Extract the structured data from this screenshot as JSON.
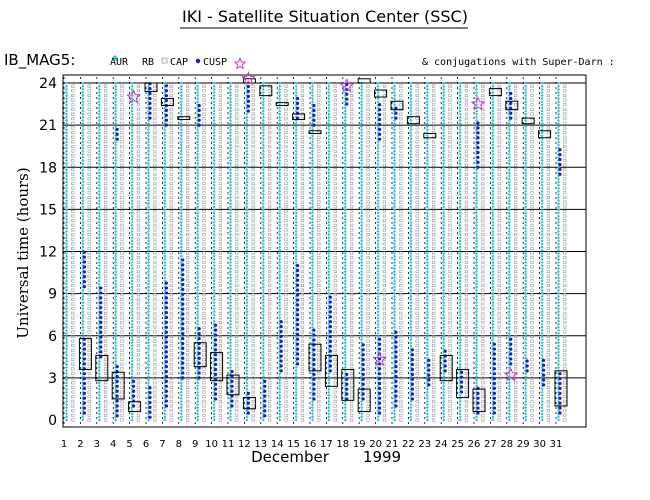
{
  "chart_data": {
    "type": "scatter",
    "title": "IKI - Satellite Situation Center (SSC)",
    "subtitle": "IB_MAG5:",
    "legend_items": [
      "AUR",
      "RB",
      "CAP",
      "CUSP"
    ],
    "note": "& conjugations with Super-Darn :",
    "ylabel": "Universal time (hours)",
    "xlabel": "December",
    "year": "1999",
    "ylim": [
      0,
      24
    ],
    "yticks": [
      0,
      3,
      6,
      9,
      12,
      15,
      18,
      21,
      24
    ],
    "xlim": [
      1,
      31
    ],
    "x": [
      1,
      2,
      3,
      4,
      5,
      6,
      7,
      8,
      9,
      10,
      11,
      12,
      13,
      14,
      15,
      16,
      17,
      18,
      19,
      20,
      21,
      22,
      23,
      24,
      25,
      26,
      27,
      28,
      29,
      30,
      31
    ],
    "grid": true,
    "legend_placement": "top-left",
    "colors": {
      "AUR": "#33c8d8",
      "RB": "#000000",
      "CAP": "#9a9a9a",
      "CUSP": "#1a1ad0",
      "star": "#cc33cc",
      "box": "#000000"
    },
    "cusp_ranges": [
      [
        2,
        0.5,
        6.0
      ],
      [
        3,
        4.5,
        9.5
      ],
      [
        4,
        0.3,
        4.0
      ],
      [
        5,
        1.0,
        3.0
      ],
      [
        6,
        0.2,
        2.5
      ],
      [
        7,
        1.0,
        10.0
      ],
      [
        8,
        3.0,
        11.5
      ],
      [
        9,
        3.0,
        6.5
      ],
      [
        10,
        1.5,
        7.0
      ],
      [
        11,
        1.0,
        3.5
      ],
      [
        12,
        0.5,
        2.0
      ],
      [
        13,
        0.3,
        3.0
      ],
      [
        14,
        3.5,
        7.0
      ],
      [
        15,
        4.0,
        11.0
      ],
      [
        16,
        1.5,
        6.5
      ],
      [
        17,
        3.5,
        9.0
      ],
      [
        18,
        1.5,
        3.5
      ],
      [
        19,
        1.5,
        5.5
      ],
      [
        20,
        0.5,
        6.0
      ],
      [
        21,
        1.0,
        6.5
      ],
      [
        22,
        1.5,
        5.0
      ],
      [
        23,
        2.5,
        4.5
      ],
      [
        24,
        3.5,
        5.0
      ],
      [
        25,
        2.0,
        3.5
      ],
      [
        26,
        0.5,
        2.5
      ],
      [
        27,
        0.5,
        5.5
      ],
      [
        28,
        4.0,
        6.0
      ],
      [
        29,
        3.5,
        4.5
      ],
      [
        30,
        2.5,
        4.5
      ],
      [
        31,
        0.5,
        3.5
      ]
    ],
    "cusp_upper": [
      [
        2,
        9.5,
        12.0
      ],
      [
        4,
        20.0,
        21.0
      ],
      [
        6,
        21.5,
        24.0
      ],
      [
        7,
        21.0,
        24.0
      ],
      [
        9,
        21.0,
        22.5
      ],
      [
        12,
        22.0,
        24.0
      ],
      [
        15,
        21.5,
        23.0
      ],
      [
        16,
        21.0,
        22.5
      ],
      [
        18,
        22.5,
        24.0
      ],
      [
        20,
        20.0,
        22.5
      ],
      [
        21,
        21.5,
        22.5
      ],
      [
        26,
        18.0,
        21.5
      ],
      [
        28,
        21.5,
        23.5
      ],
      [
        31,
        17.5,
        19.5
      ]
    ],
    "boxes": [
      [
        2,
        3.6,
        5.8
      ],
      [
        3,
        2.8,
        4.6
      ],
      [
        4,
        1.5,
        3.4
      ],
      [
        5,
        0.6,
        1.3
      ],
      [
        6,
        23.4,
        24.0
      ],
      [
        7,
        22.4,
        22.9
      ],
      [
        8,
        21.4,
        21.6
      ],
      [
        9,
        3.8,
        5.5
      ],
      [
        10,
        2.8,
        4.8
      ],
      [
        11,
        1.8,
        3.2
      ],
      [
        12,
        0.8,
        1.6
      ],
      [
        12,
        24.0,
        24.3
      ],
      [
        13,
        23.1,
        23.8
      ],
      [
        14,
        22.4,
        22.6
      ],
      [
        15,
        21.4,
        21.8
      ],
      [
        16,
        20.4,
        20.6
      ],
      [
        16,
        3.5,
        5.4
      ],
      [
        17,
        2.4,
        4.6
      ],
      [
        18,
        1.4,
        3.6
      ],
      [
        19,
        0.6,
        2.2
      ],
      [
        19,
        24.0,
        24.3
      ],
      [
        20,
        23.0,
        23.5
      ],
      [
        21,
        22.1,
        22.7
      ],
      [
        22,
        21.1,
        21.6
      ],
      [
        23,
        20.1,
        20.4
      ],
      [
        24,
        2.8,
        4.6
      ],
      [
        25,
        1.6,
        3.6
      ],
      [
        26,
        0.6,
        2.2
      ],
      [
        27,
        23.1,
        23.6
      ],
      [
        28,
        22.1,
        22.7
      ],
      [
        29,
        21.1,
        21.5
      ],
      [
        30,
        20.1,
        20.6
      ],
      [
        31,
        1.0,
        3.5
      ]
    ],
    "stars": [
      [
        5,
        23.0
      ],
      [
        12,
        24.3
      ],
      [
        18,
        23.8
      ],
      [
        20,
        4.3
      ],
      [
        26,
        22.5
      ],
      [
        28,
        3.2
      ]
    ]
  }
}
